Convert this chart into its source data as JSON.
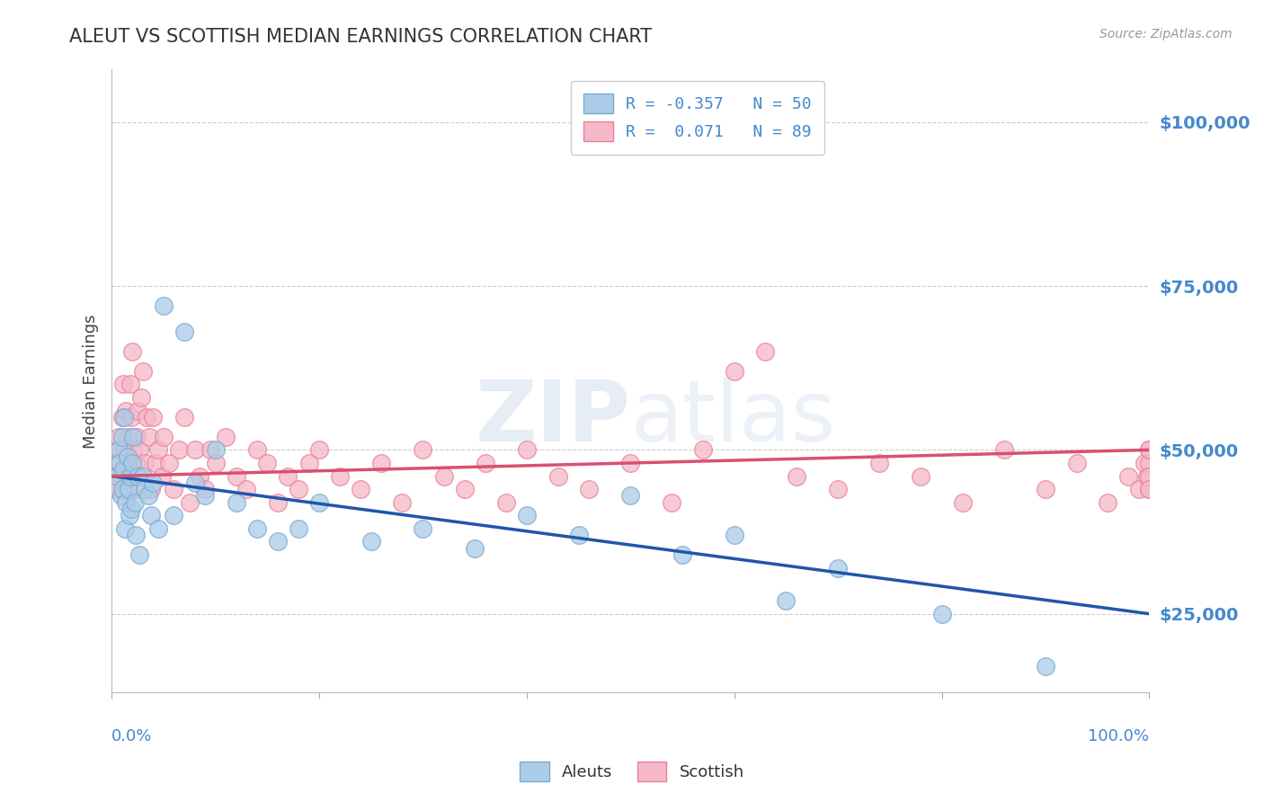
{
  "title": "ALEUT VS SCOTTISH MEDIAN EARNINGS CORRELATION CHART",
  "source": "Source: ZipAtlas.com",
  "ylabel": "Median Earnings",
  "yticks": [
    25000,
    50000,
    75000,
    100000
  ],
  "ytick_labels": [
    "$25,000",
    "$50,000",
    "$75,000",
    "$100,000"
  ],
  "ymin": 13000,
  "ymax": 108000,
  "xmin": 0.0,
  "xmax": 1.0,
  "aleut_color": "#aacce8",
  "aleut_edge_color": "#7aaad0",
  "scottish_color": "#f5b8c8",
  "scottish_edge_color": "#e8809a",
  "aleut_line_color": "#2255aa",
  "scottish_line_color": "#d95070",
  "watermark": "ZIPatlas",
  "background_color": "#ffffff",
  "grid_color": "#cccccc",
  "tick_color": "#4488cc",
  "aleut_x": [
    0.005,
    0.007,
    0.008,
    0.009,
    0.01,
    0.01,
    0.011,
    0.012,
    0.013,
    0.014,
    0.015,
    0.016,
    0.017,
    0.018,
    0.019,
    0.02,
    0.021,
    0.022,
    0.023,
    0.025,
    0.027,
    0.03,
    0.032,
    0.035,
    0.038,
    0.04,
    0.045,
    0.05,
    0.06,
    0.07,
    0.08,
    0.09,
    0.1,
    0.12,
    0.14,
    0.16,
    0.18,
    0.2,
    0.25,
    0.3,
    0.35,
    0.4,
    0.45,
    0.5,
    0.55,
    0.6,
    0.65,
    0.7,
    0.8,
    0.9
  ],
  "aleut_y": [
    46000,
    50000,
    48000,
    43000,
    52000,
    44000,
    47000,
    55000,
    38000,
    42000,
    49000,
    44000,
    40000,
    46000,
    41000,
    48000,
    52000,
    42000,
    37000,
    46000,
    34000,
    46000,
    44000,
    43000,
    40000,
    45000,
    38000,
    72000,
    40000,
    68000,
    45000,
    43000,
    50000,
    42000,
    38000,
    36000,
    38000,
    42000,
    36000,
    38000,
    35000,
    40000,
    37000,
    43000,
    34000,
    37000,
    27000,
    32000,
    25000,
    17000
  ],
  "scottish_x": [
    0.005,
    0.006,
    0.007,
    0.008,
    0.009,
    0.01,
    0.011,
    0.012,
    0.013,
    0.014,
    0.015,
    0.016,
    0.017,
    0.018,
    0.019,
    0.02,
    0.021,
    0.022,
    0.023,
    0.024,
    0.025,
    0.027,
    0.028,
    0.03,
    0.032,
    0.034,
    0.036,
    0.038,
    0.04,
    0.042,
    0.045,
    0.048,
    0.05,
    0.055,
    0.06,
    0.065,
    0.07,
    0.075,
    0.08,
    0.085,
    0.09,
    0.095,
    0.1,
    0.11,
    0.12,
    0.13,
    0.14,
    0.15,
    0.16,
    0.17,
    0.18,
    0.19,
    0.2,
    0.22,
    0.24,
    0.26,
    0.28,
    0.3,
    0.32,
    0.34,
    0.36,
    0.38,
    0.4,
    0.43,
    0.46,
    0.5,
    0.54,
    0.57,
    0.6,
    0.63,
    0.66,
    0.7,
    0.74,
    0.78,
    0.82,
    0.86,
    0.9,
    0.93,
    0.96,
    0.98,
    0.99,
    0.995,
    0.998,
    1.0,
    1.0,
    1.0,
    1.0,
    1.0,
    1.0
  ],
  "scottish_y": [
    44000,
    48000,
    52000,
    50000,
    46000,
    55000,
    60000,
    50000,
    44000,
    56000,
    48000,
    52000,
    46000,
    60000,
    55000,
    65000,
    50000,
    44000,
    48000,
    52000,
    56000,
    50000,
    58000,
    62000,
    48000,
    55000,
    52000,
    44000,
    55000,
    48000,
    50000,
    46000,
    52000,
    48000,
    44000,
    50000,
    55000,
    42000,
    50000,
    46000,
    44000,
    50000,
    48000,
    52000,
    46000,
    44000,
    50000,
    48000,
    42000,
    46000,
    44000,
    48000,
    50000,
    46000,
    44000,
    48000,
    42000,
    50000,
    46000,
    44000,
    48000,
    42000,
    50000,
    46000,
    44000,
    48000,
    42000,
    50000,
    62000,
    65000,
    46000,
    44000,
    48000,
    46000,
    42000,
    50000,
    44000,
    48000,
    42000,
    46000,
    44000,
    48000,
    46000,
    50000,
    44000,
    48000,
    46000,
    50000,
    44000
  ]
}
